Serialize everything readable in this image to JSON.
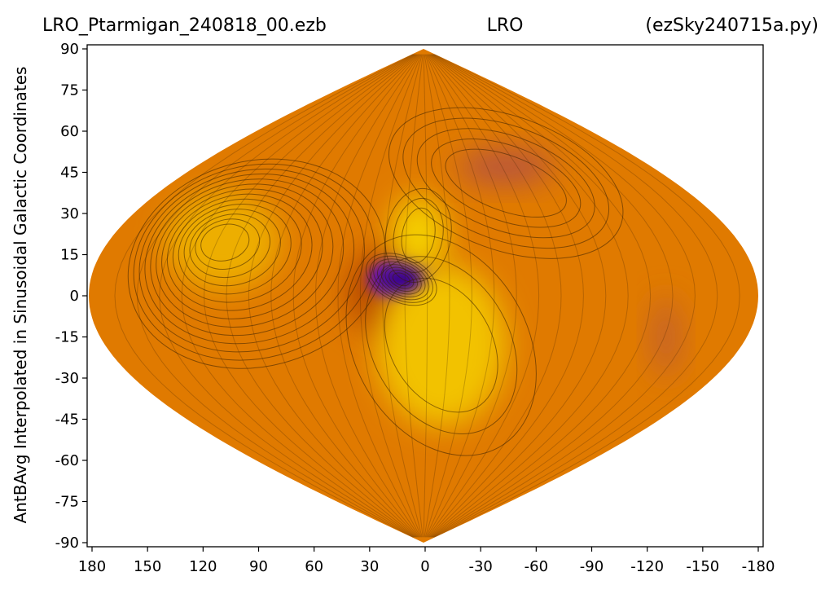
{
  "chart_data": {
    "type": "heatmap",
    "title_left": "LRO_Ptarmigan_240818_00.ezb",
    "title_center": "LRO",
    "title_right": "(ezSky240715a.py)",
    "xlabel": "",
    "ylabel": "AntBAvg Interpolated in Sinusoidal Galactic Coordinates",
    "projection": "sinusoidal",
    "x_ticks": [
      "180",
      "150",
      "120",
      "90",
      "60",
      "30",
      "0",
      "-30",
      "-60",
      "-90",
      "-120",
      "-150",
      "-180"
    ],
    "y_ticks": [
      "90",
      "75",
      "60",
      "45",
      "30",
      "15",
      "0",
      "-15",
      "-30",
      "-45",
      "-60",
      "-75",
      "-90"
    ],
    "xlim": [
      180,
      -180
    ],
    "ylim": [
      -90,
      90
    ],
    "colormap": "gnuplot",
    "colors": {
      "low": "#5a00d0",
      "mid": "#e07a00",
      "high": "#f5d000"
    },
    "features": [
      {
        "lon": 12,
        "lat": 6,
        "level": 0.0
      },
      {
        "lon": 3,
        "lat": 22,
        "level": 1.0
      },
      {
        "lon": -10,
        "lat": -18,
        "level": 0.92
      },
      {
        "lon": 115,
        "lat": 20,
        "level": 0.8
      },
      {
        "lon": -65,
        "lat": 47,
        "level": 0.35
      },
      {
        "lon": -135,
        "lat": -15,
        "level": 0.4
      }
    ]
  }
}
